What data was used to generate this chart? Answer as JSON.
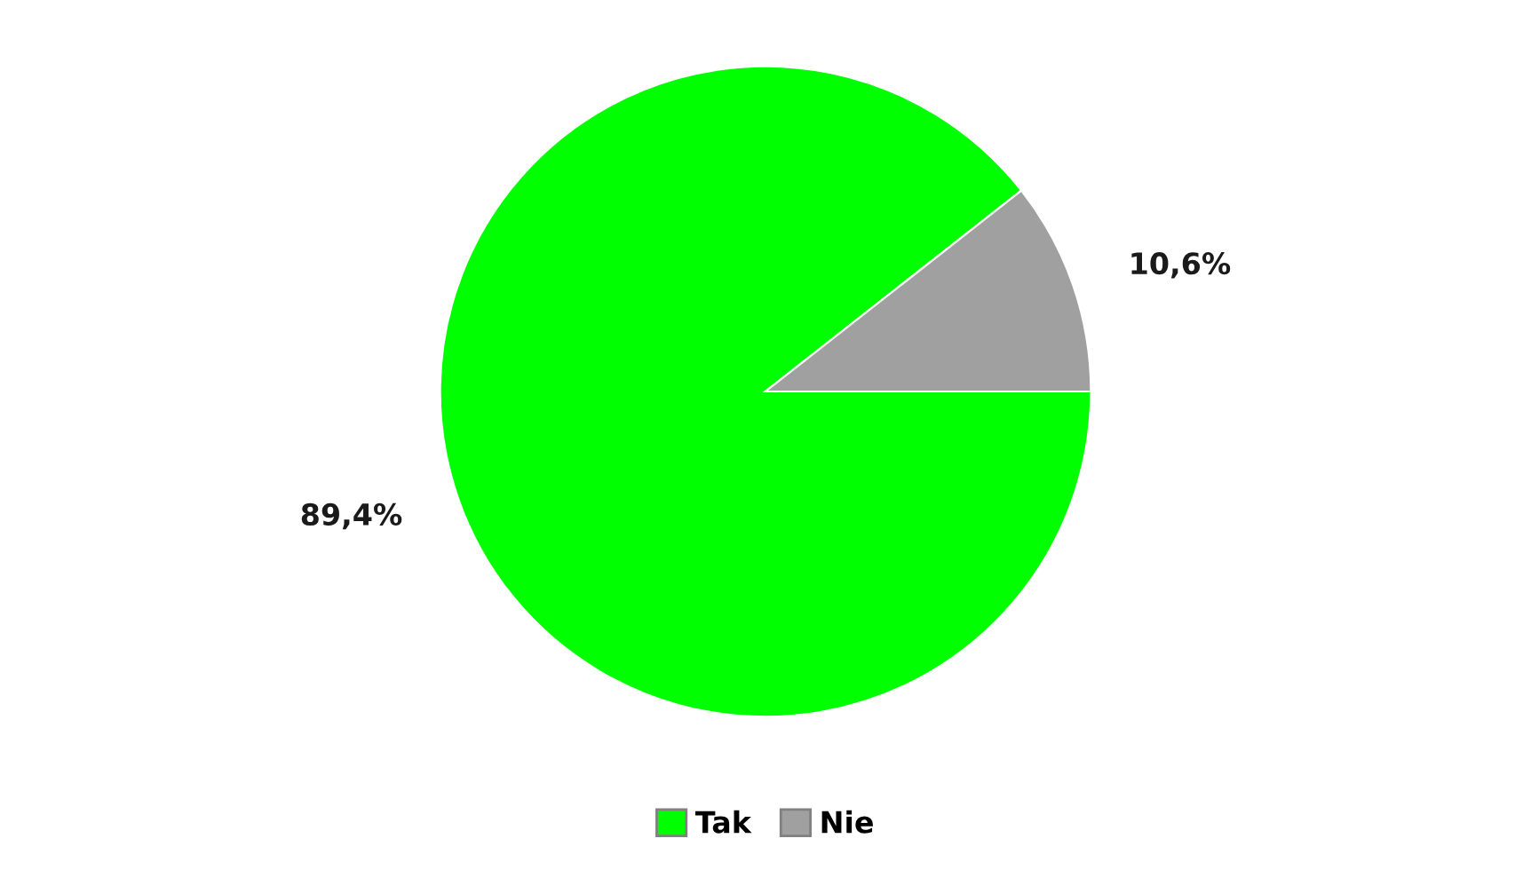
{
  "chart_data": {
    "type": "pie",
    "categories": [
      "Tak",
      "Nie"
    ],
    "values": [
      89.4,
      10.6
    ],
    "colors": [
      "#00ff00",
      "#a0a0a0"
    ],
    "value_labels": [
      "89,4%",
      "10,6%"
    ],
    "legend": "bottom"
  }
}
